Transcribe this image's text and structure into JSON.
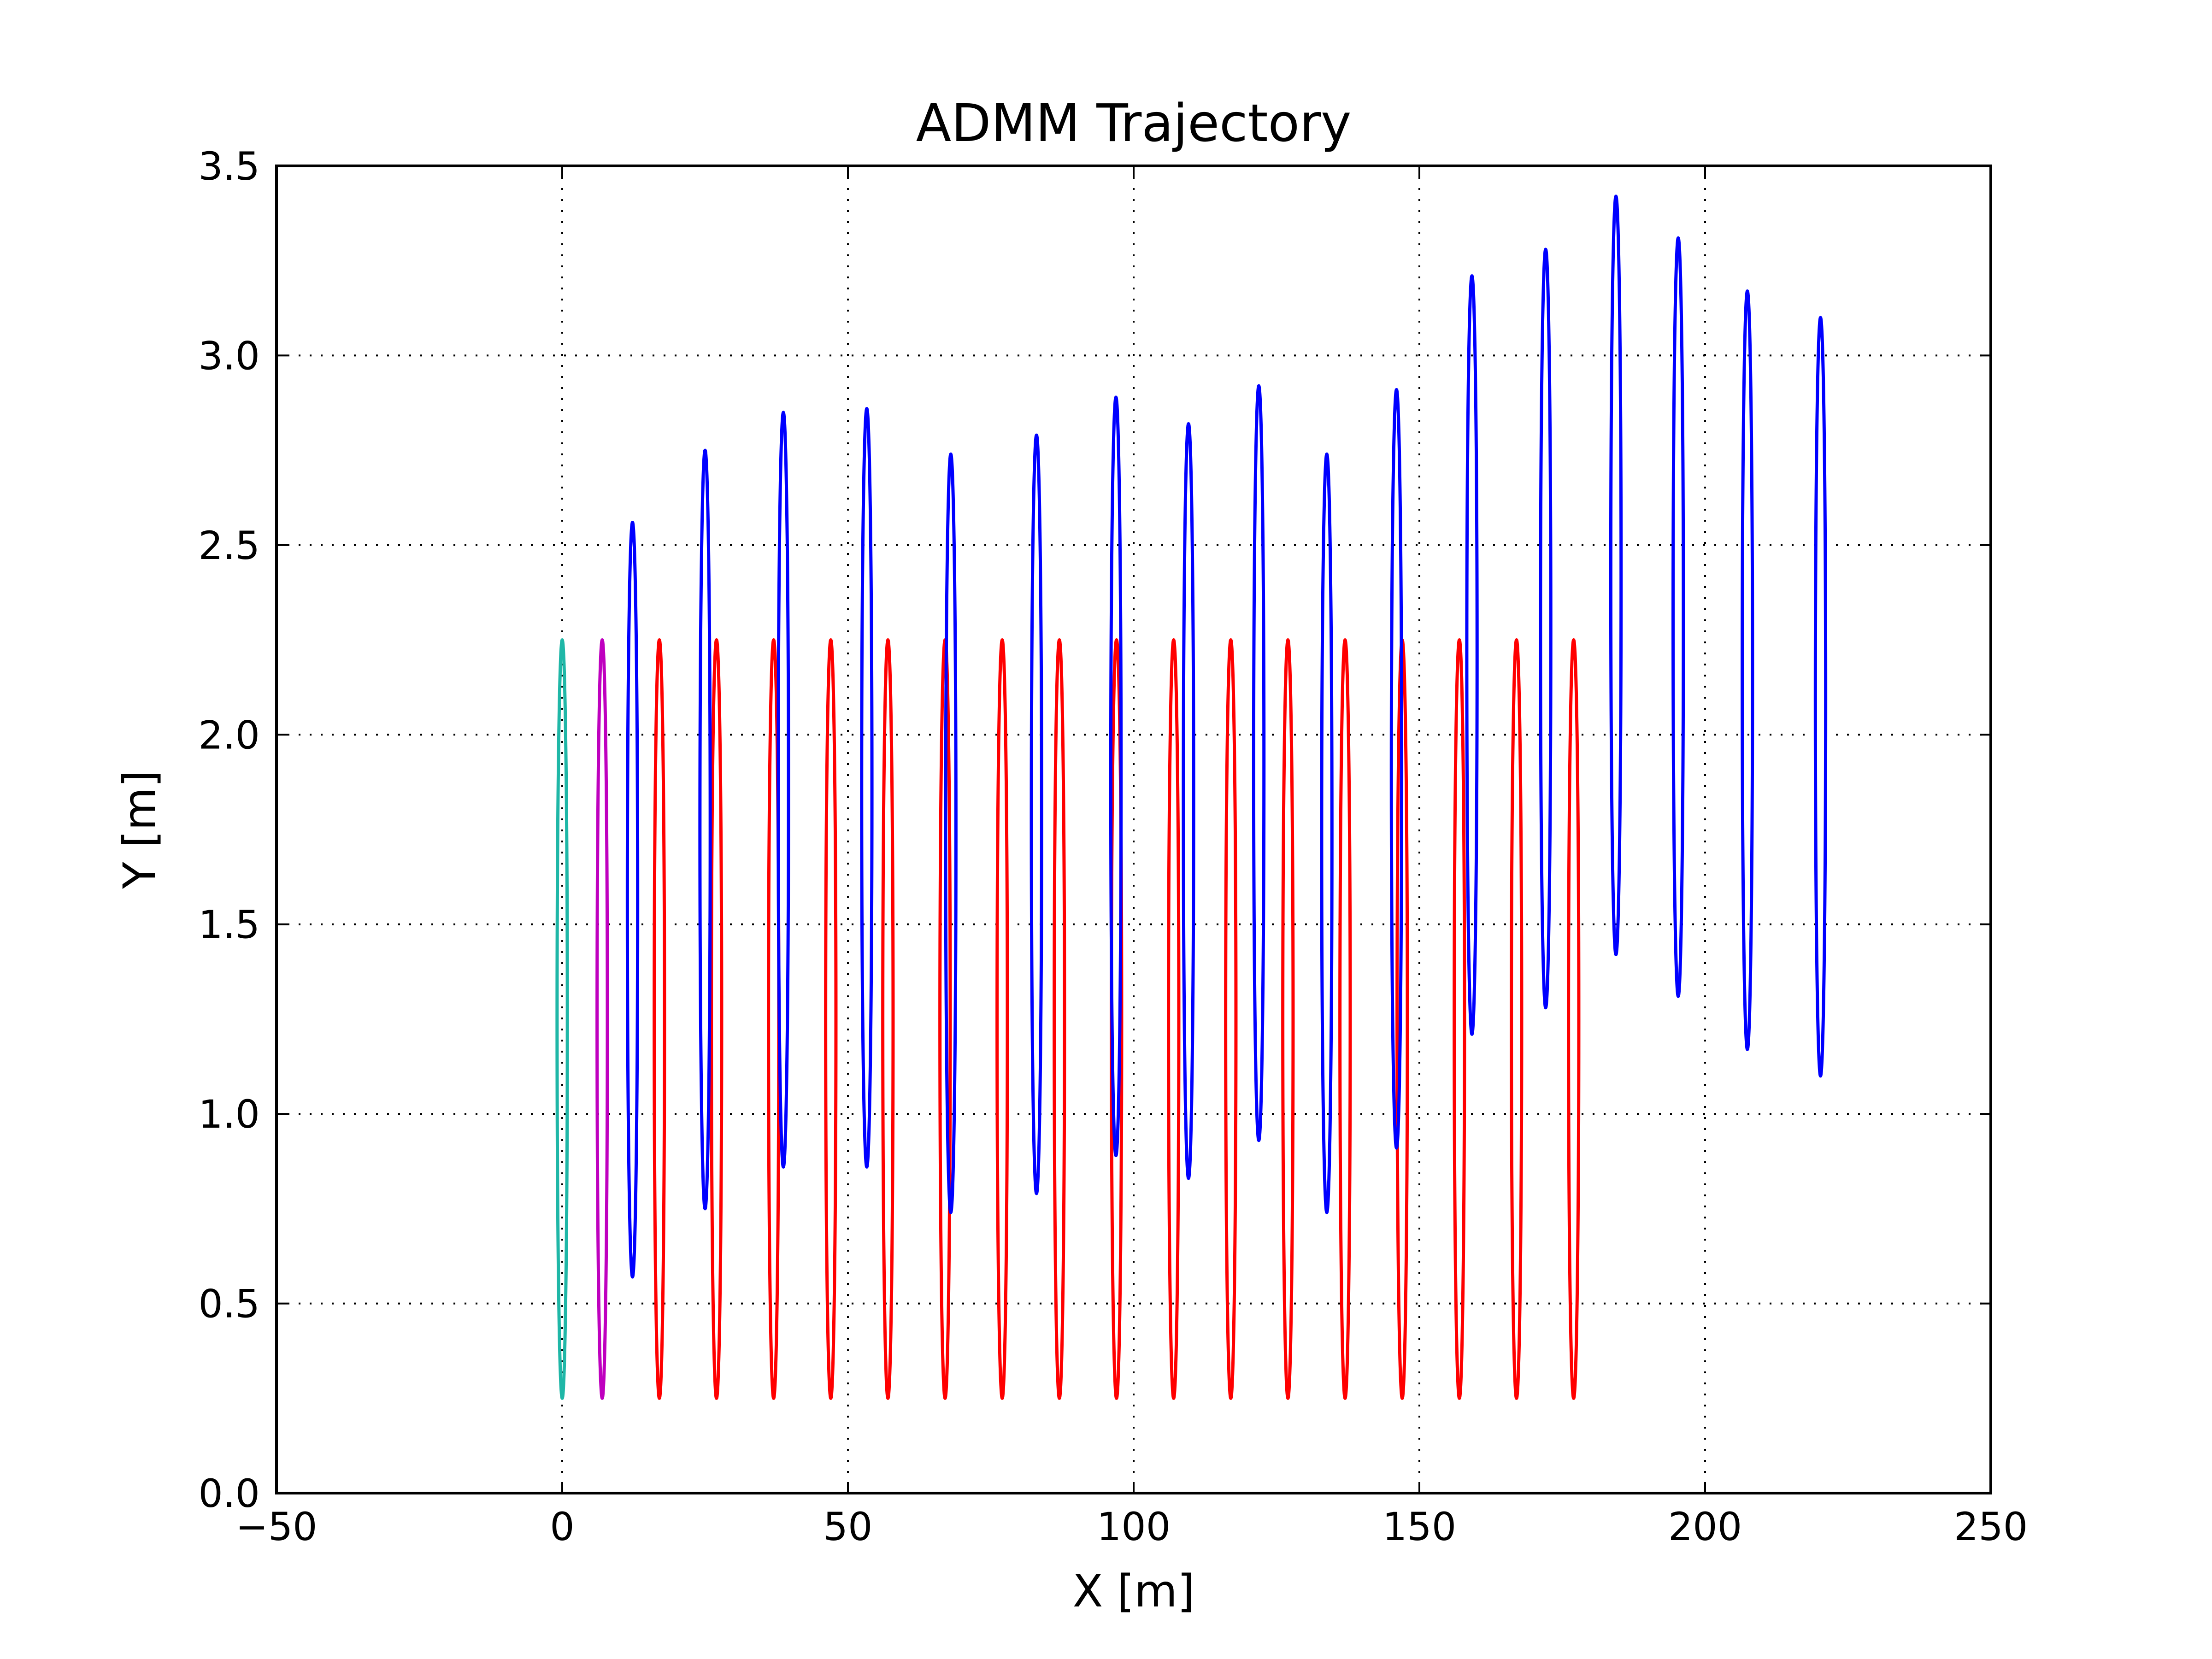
{
  "chart_data": {
    "type": "line",
    "title": "ADMM Trajectory",
    "xlabel": "X [m]",
    "ylabel": "Y [m]",
    "xlim": [
      -50,
      250
    ],
    "ylim": [
      0.0,
      3.5
    ],
    "grid": true,
    "xticks": [
      -50,
      0,
      50,
      100,
      150,
      200,
      250
    ],
    "yticks": [
      0.0,
      0.5,
      1.0,
      1.5,
      2.0,
      2.5,
      3.0,
      3.5
    ],
    "xtick_labels": [
      "−50",
      "0",
      "50",
      "100",
      "150",
      "200",
      "250"
    ],
    "ytick_labels": [
      "0.0",
      "0.5",
      "1.0",
      "1.5",
      "2.0",
      "2.5",
      "3.0",
      "3.5"
    ],
    "series": [
      {
        "color": "#1fb7a7",
        "loops": [
          {
            "x": 0,
            "ymin": 0.25,
            "ymax": 2.25,
            "halfwidth": 0.9
          }
        ]
      },
      {
        "color": "#bf00bf",
        "loops": [
          {
            "x": 7,
            "ymin": 0.25,
            "ymax": 2.25,
            "halfwidth": 0.9
          }
        ]
      },
      {
        "color": "#ff0000",
        "loops": [
          {
            "x": 17,
            "ymin": 0.25,
            "ymax": 2.25,
            "halfwidth": 0.9
          },
          {
            "x": 27,
            "ymin": 0.25,
            "ymax": 2.25,
            "halfwidth": 0.9
          },
          {
            "x": 37,
            "ymin": 0.25,
            "ymax": 2.25,
            "halfwidth": 0.9
          },
          {
            "x": 47,
            "ymin": 0.25,
            "ymax": 2.25,
            "halfwidth": 0.9
          },
          {
            "x": 57,
            "ymin": 0.25,
            "ymax": 2.25,
            "halfwidth": 0.9
          },
          {
            "x": 67,
            "ymin": 0.25,
            "ymax": 2.25,
            "halfwidth": 0.9
          },
          {
            "x": 77,
            "ymin": 0.25,
            "ymax": 2.25,
            "halfwidth": 0.9
          },
          {
            "x": 87,
            "ymin": 0.25,
            "ymax": 2.25,
            "halfwidth": 0.9
          },
          {
            "x": 97,
            "ymin": 0.25,
            "ymax": 2.25,
            "halfwidth": 0.9
          },
          {
            "x": 107,
            "ymin": 0.25,
            "ymax": 2.25,
            "halfwidth": 0.9
          },
          {
            "x": 117,
            "ymin": 0.25,
            "ymax": 2.25,
            "halfwidth": 0.9
          },
          {
            "x": 127,
            "ymin": 0.25,
            "ymax": 2.25,
            "halfwidth": 0.9
          },
          {
            "x": 137,
            "ymin": 0.25,
            "ymax": 2.25,
            "halfwidth": 0.9
          },
          {
            "x": 147,
            "ymin": 0.25,
            "ymax": 2.25,
            "halfwidth": 0.9
          },
          {
            "x": 157,
            "ymin": 0.25,
            "ymax": 2.25,
            "halfwidth": 0.9
          },
          {
            "x": 167,
            "ymin": 0.25,
            "ymax": 2.25,
            "halfwidth": 0.9
          },
          {
            "x": 177,
            "ymin": 0.25,
            "ymax": 2.25,
            "halfwidth": 0.9
          }
        ]
      },
      {
        "color": "#0000ff",
        "loops": [
          {
            "x": 12.3,
            "ymin": 0.57,
            "ymax": 2.56,
            "halfwidth": 0.9
          },
          {
            "x": 25.0,
            "ymin": 0.75,
            "ymax": 2.75,
            "halfwidth": 0.9
          },
          {
            "x": 38.7,
            "ymin": 0.86,
            "ymax": 2.85,
            "halfwidth": 0.9
          },
          {
            "x": 53.3,
            "ymin": 0.86,
            "ymax": 2.86,
            "halfwidth": 0.9
          },
          {
            "x": 68.0,
            "ymin": 0.74,
            "ymax": 2.74,
            "halfwidth": 0.9
          },
          {
            "x": 83.0,
            "ymin": 0.79,
            "ymax": 2.79,
            "halfwidth": 0.9
          },
          {
            "x": 96.9,
            "ymin": 0.89,
            "ymax": 2.89,
            "halfwidth": 0.9
          },
          {
            "x": 109.6,
            "ymin": 0.83,
            "ymax": 2.82,
            "halfwidth": 0.9
          },
          {
            "x": 121.9,
            "ymin": 0.93,
            "ymax": 2.92,
            "halfwidth": 0.9
          },
          {
            "x": 133.8,
            "ymin": 0.74,
            "ymax": 2.74,
            "halfwidth": 0.9
          },
          {
            "x": 146.0,
            "ymin": 0.91,
            "ymax": 2.91,
            "halfwidth": 0.9
          },
          {
            "x": 159.2,
            "ymin": 1.21,
            "ymax": 3.21,
            "halfwidth": 0.9
          },
          {
            "x": 172.1,
            "ymin": 1.28,
            "ymax": 3.28,
            "halfwidth": 0.9
          },
          {
            "x": 184.4,
            "ymin": 1.42,
            "ymax": 3.42,
            "halfwidth": 0.9
          },
          {
            "x": 195.3,
            "ymin": 1.31,
            "ymax": 3.31,
            "halfwidth": 0.9
          },
          {
            "x": 207.4,
            "ymin": 1.17,
            "ymax": 3.17,
            "halfwidth": 0.9
          },
          {
            "x": 220.2,
            "ymin": 1.1,
            "ymax": 3.1,
            "halfwidth": 0.9
          }
        ]
      }
    ]
  }
}
